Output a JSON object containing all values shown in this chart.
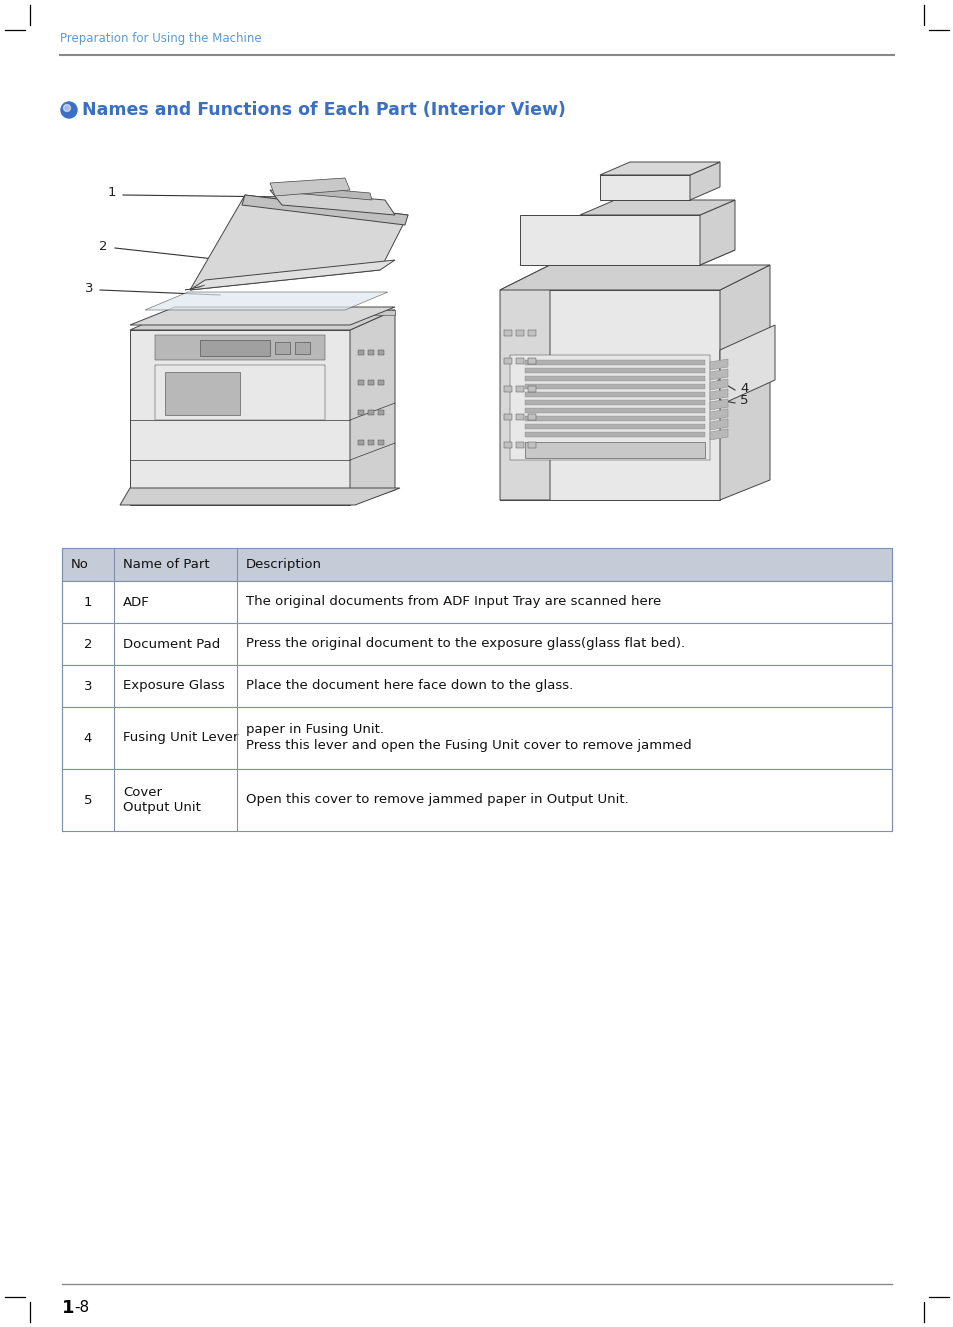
{
  "page_bg": "#ffffff",
  "header_text": "Preparation for Using the Machine",
  "header_color": "#5b9bd5",
  "header_line_color": "#888888",
  "section_bullet_color": "#3a6fc4",
  "section_title": "Names and Functions of Each Part (Interior View)",
  "section_title_color": "#3a6fc4",
  "section_title_fontsize": 12.5,
  "table_header_bg": "#c5ccd8",
  "table_row_bg": "#ffffff",
  "table_border_color": "#8090b0",
  "table_data": [
    [
      "No",
      "Name of Part",
      "Description"
    ],
    [
      "1",
      "ADF",
      "The original documents from ADF Input Tray are scanned here"
    ],
    [
      "2",
      "Document Pad",
      "Press the original document to the exposure glass(glass flat bed)."
    ],
    [
      "3",
      "Exposure Glass",
      "Place the document here face down to the glass."
    ],
    [
      "4",
      "Fusing Unit Lever",
      "Press this lever and open the Fusing Unit cover to remove jammed\npaper in Fusing Unit."
    ],
    [
      "5",
      "Output Unit\nCover",
      "Open this cover to remove jammed paper in Output Unit."
    ]
  ],
  "footer_text": "1",
  "footer_dash": "-8",
  "footer_line_color": "#888888",
  "margin_marks_color": "#000000",
  "label_color": "#222222",
  "line_color": "#555555"
}
